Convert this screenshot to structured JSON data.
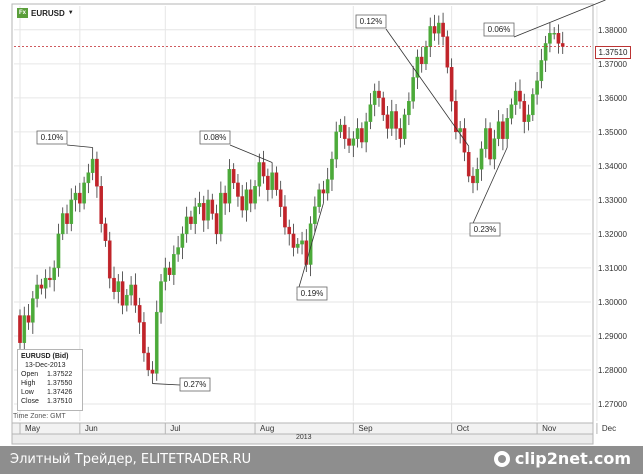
{
  "symbol": {
    "icon": "Fx",
    "name": "EURUSD",
    "dropdown": "▼"
  },
  "ohlc": {
    "title": "EURUSD (Bid)",
    "date": "13-Dec-2013",
    "open_label": "Open",
    "open": "1.37522",
    "high_label": "High",
    "high": "1.37550",
    "low_label": "Low",
    "low": "1.37426",
    "close_label": "Close",
    "close": "1.37510"
  },
  "timezone": "Time Zone: GMT",
  "last_price": "1.37510",
  "year": "2013",
  "footer": {
    "text": "Элитный Трейдер, ELITETRADER.RU",
    "logo": "clip2net.com"
  },
  "colors": {
    "up": "#4caa3a",
    "down": "#c0242a",
    "grid": "#e6e6e6",
    "last_line": "#c0242a"
  },
  "chart_data": {
    "type": "candlestick",
    "y_ticks": [
      1.27,
      1.28,
      1.29,
      1.3,
      1.31,
      1.32,
      1.33,
      1.34,
      1.35,
      1.36,
      1.37,
      1.38
    ],
    "y_tick_labels": [
      "1.27000",
      "1.28000",
      "1.29000",
      "1.30000",
      "1.31000",
      "1.32000",
      "1.33000",
      "1.34000",
      "1.35000",
      "1.36000",
      "1.37000",
      "1.38000"
    ],
    "ylim": [
      1.265,
      1.387
    ],
    "x_labels": [
      "May",
      "Jun",
      "Jul",
      "Aug",
      "Sep",
      "Oct",
      "Nov",
      "Dec"
    ],
    "annotations": [
      {
        "text": "0.10%",
        "bar": 17
      },
      {
        "text": "0.08%",
        "bar": 59
      },
      {
        "text": "0.12%",
        "bar": 105
      },
      {
        "text": "0.06%",
        "bar": 137
      },
      {
        "text": "0.27%",
        "bar": 31
      },
      {
        "text": "0.19%",
        "bar": 71
      },
      {
        "text": "0.23%",
        "bar": 114
      }
    ],
    "closes": [
      1.288,
      1.296,
      1.294,
      1.301,
      1.305,
      1.304,
      1.307,
      1.3065,
      1.31,
      1.32,
      1.326,
      1.323,
      1.33,
      1.332,
      1.329,
      1.335,
      1.338,
      1.342,
      1.334,
      1.323,
      1.318,
      1.307,
      1.303,
      1.306,
      1.299,
      1.302,
      1.305,
      1.299,
      1.294,
      1.285,
      1.28,
      1.279,
      1.297,
      1.306,
      1.31,
      1.308,
      1.314,
      1.316,
      1.32,
      1.325,
      1.323,
      1.328,
      1.329,
      1.324,
      1.33,
      1.326,
      1.32,
      1.332,
      1.329,
      1.339,
      1.335,
      1.331,
      1.327,
      1.333,
      1.329,
      1.334,
      1.341,
      1.337,
      1.333,
      1.338,
      1.333,
      1.328,
      1.322,
      1.32,
      1.316,
      1.317,
      1.318,
      1.311,
      1.323,
      1.328,
      1.333,
      1.332,
      1.336,
      1.342,
      1.35,
      1.352,
      1.348,
      1.346,
      1.348,
      1.351,
      1.347,
      1.353,
      1.358,
      1.362,
      1.36,
      1.355,
      1.351,
      1.356,
      1.351,
      1.348,
      1.355,
      1.359,
      1.366,
      1.372,
      1.37,
      1.375,
      1.381,
      1.379,
      1.382,
      1.378,
      1.369,
      1.359,
      1.35,
      1.351,
      1.344,
      1.337,
      1.335,
      1.339,
      1.345,
      1.351,
      1.342,
      1.348,
      1.353,
      1.348,
      1.354,
      1.358,
      1.362,
      1.359,
      1.353,
      1.355,
      1.361,
      1.365,
      1.371,
      1.376,
      1.379,
      1.379,
      1.376,
      1.3751
    ],
    "series_start_close": 1.296
  }
}
